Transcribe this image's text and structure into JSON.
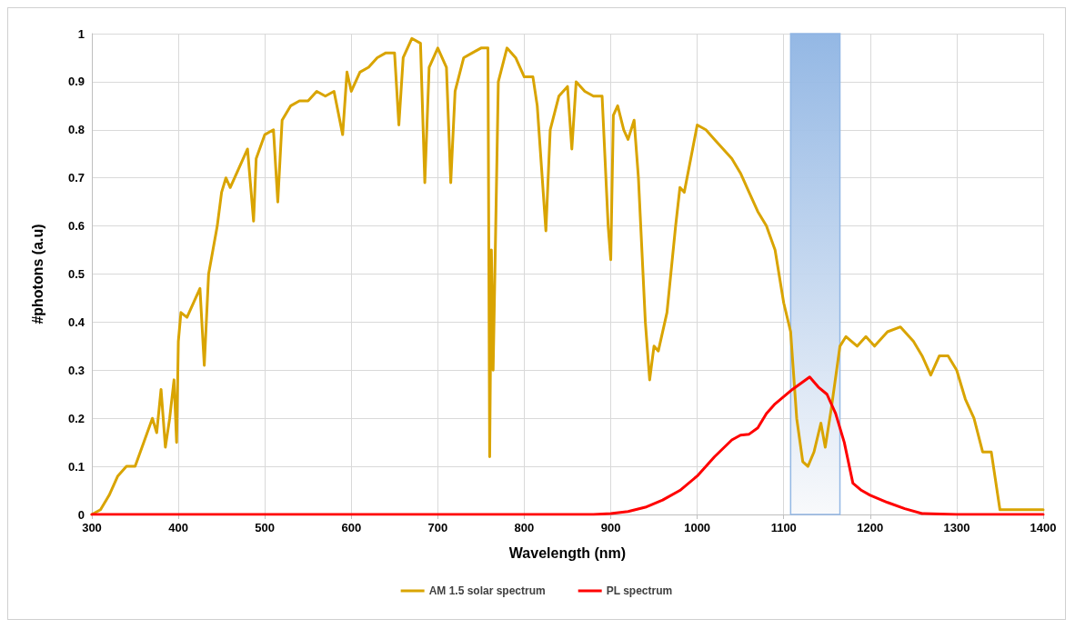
{
  "chart_data": {
    "type": "line",
    "xlabel": "Wavelength (nm)",
    "ylabel": "#photons (a.u)",
    "xlim": [
      300,
      1400
    ],
    "xticks": [
      300,
      400,
      500,
      600,
      700,
      800,
      900,
      1000,
      1100,
      1200,
      1300,
      1400
    ],
    "ylim": [
      0,
      1
    ],
    "yticks": [
      0,
      0.1,
      0.2,
      0.3,
      0.4,
      0.5,
      0.6,
      0.7,
      0.8,
      0.9,
      1
    ],
    "grid": true,
    "legend": "bottom",
    "marker": "none",
    "line_style": "solid",
    "bands": [
      {
        "axis": "x",
        "from": 1108,
        "to": 1165,
        "color": "#8eb4e3"
      }
    ],
    "series": [
      {
        "name": "AM 1.5 solar spectrum",
        "color": "#d9a400",
        "x": [
          300,
          310,
          320,
          330,
          340,
          350,
          360,
          370,
          375,
          380,
          385,
          390,
          395,
          398,
          400,
          403,
          410,
          420,
          425,
          430,
          435,
          440,
          445,
          450,
          455,
          460,
          470,
          480,
          487,
          490,
          500,
          510,
          515,
          520,
          530,
          540,
          550,
          560,
          570,
          580,
          590,
          595,
          600,
          610,
          620,
          630,
          640,
          650,
          655,
          660,
          670,
          680,
          685,
          690,
          700,
          710,
          715,
          720,
          730,
          740,
          750,
          758,
          760,
          762,
          764,
          770,
          780,
          790,
          800,
          810,
          815,
          820,
          825,
          830,
          840,
          850,
          855,
          860,
          870,
          880,
          890,
          897,
          900,
          903,
          908,
          915,
          920,
          927,
          932,
          940,
          945,
          950,
          955,
          965,
          975,
          980,
          985,
          1000,
          1010,
          1020,
          1030,
          1040,
          1050,
          1060,
          1070,
          1080,
          1090,
          1100,
          1108,
          1115,
          1122,
          1128,
          1135,
          1143,
          1148,
          1155,
          1165,
          1172,
          1185,
          1195,
          1205,
          1220,
          1235,
          1250,
          1260,
          1270,
          1280,
          1290,
          1300,
          1310,
          1320,
          1330,
          1340,
          1345,
          1350,
          1360,
          1400
        ],
        "values": [
          0,
          0.01,
          0.04,
          0.08,
          0.1,
          0.1,
          0.15,
          0.2,
          0.17,
          0.26,
          0.14,
          0.2,
          0.28,
          0.15,
          0.36,
          0.42,
          0.41,
          0.45,
          0.47,
          0.31,
          0.5,
          0.55,
          0.6,
          0.67,
          0.7,
          0.68,
          0.72,
          0.76,
          0.61,
          0.74,
          0.79,
          0.8,
          0.65,
          0.82,
          0.85,
          0.86,
          0.86,
          0.88,
          0.87,
          0.88,
          0.79,
          0.92,
          0.88,
          0.92,
          0.93,
          0.95,
          0.96,
          0.96,
          0.81,
          0.95,
          0.99,
          0.98,
          0.69,
          0.93,
          0.97,
          0.93,
          0.69,
          0.88,
          0.95,
          0.96,
          0.97,
          0.97,
          0.12,
          0.55,
          0.3,
          0.9,
          0.97,
          0.95,
          0.91,
          0.91,
          0.85,
          0.72,
          0.59,
          0.8,
          0.87,
          0.89,
          0.76,
          0.9,
          0.88,
          0.87,
          0.87,
          0.6,
          0.53,
          0.83,
          0.85,
          0.8,
          0.78,
          0.82,
          0.7,
          0.4,
          0.28,
          0.35,
          0.34,
          0.42,
          0.6,
          0.68,
          0.67,
          0.81,
          0.8,
          0.78,
          0.76,
          0.74,
          0.71,
          0.67,
          0.63,
          0.6,
          0.55,
          0.44,
          0.38,
          0.2,
          0.11,
          0.1,
          0.13,
          0.19,
          0.14,
          0.22,
          0.35,
          0.37,
          0.35,
          0.37,
          0.35,
          0.38,
          0.39,
          0.36,
          0.33,
          0.29,
          0.33,
          0.33,
          0.3,
          0.24,
          0.2,
          0.13,
          0.13,
          0.07,
          0.01,
          0.01,
          0.01
        ]
      },
      {
        "name": "PL spectrum",
        "color": "#ff0000",
        "x": [
          300,
          880,
          900,
          920,
          940,
          960,
          980,
          1000,
          1020,
          1040,
          1050,
          1060,
          1070,
          1080,
          1090,
          1100,
          1110,
          1130,
          1140,
          1150,
          1160,
          1170,
          1180,
          1190,
          1200,
          1220,
          1240,
          1260,
          1300,
          1400
        ],
        "values": [
          0,
          0,
          0.002,
          0.006,
          0.015,
          0.03,
          0.05,
          0.08,
          0.12,
          0.155,
          0.165,
          0.167,
          0.18,
          0.21,
          0.23,
          0.245,
          0.26,
          0.286,
          0.265,
          0.25,
          0.21,
          0.15,
          0.065,
          0.05,
          0.04,
          0.025,
          0.012,
          0.002,
          0,
          0
        ]
      }
    ]
  }
}
